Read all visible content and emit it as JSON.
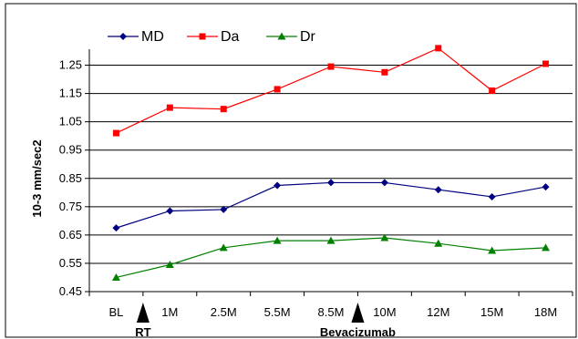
{
  "chart_data": {
    "type": "line",
    "categories": [
      "BL",
      "1M",
      "2.5M",
      "5.5M",
      "8.5M",
      "10M",
      "12M",
      "15M",
      "18M"
    ],
    "ylabel": "10-3 mm/sec2",
    "xlabel": "",
    "ylim": [
      0.45,
      1.3
    ],
    "yticks": [
      "0.45",
      "0.55",
      "0.65",
      "0.75",
      "0.85",
      "0.95",
      "1.05",
      "1.15",
      "1.25"
    ],
    "legend_position": "top-left",
    "series": [
      {
        "name": "MD",
        "color": "#000080",
        "marker": "diamond",
        "values": [
          0.675,
          0.735,
          0.74,
          0.825,
          0.835,
          0.835,
          0.81,
          0.785,
          0.82
        ]
      },
      {
        "name": "Da",
        "color": "#ff0000",
        "marker": "square",
        "values": [
          1.01,
          1.1,
          1.095,
          1.165,
          1.245,
          1.225,
          1.31,
          1.16,
          1.255
        ]
      },
      {
        "name": "Dr",
        "color": "#008000",
        "marker": "triangle",
        "values": [
          0.5,
          0.545,
          0.605,
          0.63,
          0.63,
          0.64,
          0.62,
          0.595,
          0.605
        ]
      }
    ],
    "annotations": [
      {
        "label": "RT",
        "after_category": "BL"
      },
      {
        "label": "Bevacizumab",
        "after_category": "8.5M"
      }
    ]
  }
}
